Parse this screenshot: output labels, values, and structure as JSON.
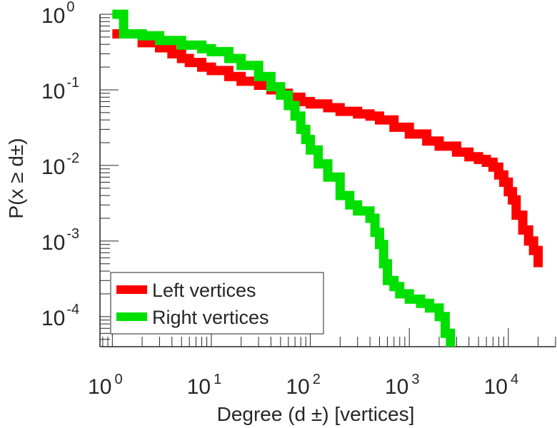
{
  "chart_data": {
    "type": "line",
    "title": "",
    "xlabel": "Degree (d ±) [vertices]",
    "ylabel": "P(x ≥ d±)",
    "xscale": "log",
    "yscale": "log",
    "xlim": [
      0.75,
      30000
    ],
    "ylim": [
      4e-05,
      1.0
    ],
    "grid": false,
    "legend_position": "bottom-left",
    "xticks": [
      {
        "value": 1,
        "base": "10",
        "exp": "0"
      },
      {
        "value": 10,
        "base": "10",
        "exp": "1"
      },
      {
        "value": 100,
        "base": "10",
        "exp": "2"
      },
      {
        "value": 1000,
        "base": "10",
        "exp": "3"
      },
      {
        "value": 10000,
        "base": "10",
        "exp": "4"
      }
    ],
    "yticks": [
      {
        "value": 1,
        "base": "10",
        "exp": "0"
      },
      {
        "value": 0.1,
        "base": "10",
        "exp": "-1"
      },
      {
        "value": 0.01,
        "base": "10",
        "exp": "-2"
      },
      {
        "value": 0.001,
        "base": "10",
        "exp": "-3"
      },
      {
        "value": 0.0001,
        "base": "10",
        "exp": "-4"
      }
    ],
    "series": [
      {
        "name": "Left vertices",
        "color": "#ff0000",
        "x": [
          1,
          2,
          3,
          4,
          5,
          6,
          8,
          10,
          15,
          20,
          30,
          40,
          50,
          60,
          80,
          100,
          150,
          200,
          300,
          400,
          500,
          700,
          1000,
          1500,
          2000,
          3000,
          4000,
          5000,
          6000,
          7000,
          8000,
          9000,
          10000,
          11000,
          12000,
          14000,
          16000,
          18000,
          20000
        ],
        "y": [
          0.55,
          0.42,
          0.36,
          0.3,
          0.26,
          0.23,
          0.2,
          0.18,
          0.15,
          0.13,
          0.115,
          0.1,
          0.09,
          0.08,
          0.07,
          0.065,
          0.058,
          0.052,
          0.048,
          0.045,
          0.04,
          0.032,
          0.026,
          0.021,
          0.018,
          0.015,
          0.013,
          0.012,
          0.011,
          0.0095,
          0.0075,
          0.006,
          0.0045,
          0.0035,
          0.0022,
          0.0014,
          0.001,
          0.00075,
          0.00045
        ]
      },
      {
        "name": "Right vertices",
        "color": "#00e000",
        "x": [
          1,
          1.3,
          2,
          3,
          5,
          8,
          10,
          15,
          20,
          30,
          40,
          50,
          60,
          70,
          80,
          90,
          100,
          120,
          150,
          200,
          250,
          300,
          400,
          450,
          500,
          550,
          600,
          700,
          800,
          1000,
          1300,
          1600,
          2000,
          2300,
          2600
        ],
        "y": [
          1.0,
          0.55,
          0.52,
          0.45,
          0.39,
          0.35,
          0.32,
          0.26,
          0.21,
          0.15,
          0.11,
          0.085,
          0.062,
          0.045,
          0.03,
          0.022,
          0.016,
          0.0105,
          0.007,
          0.004,
          0.003,
          0.0025,
          0.002,
          0.0013,
          0.0009,
          0.0005,
          0.0003,
          0.00025,
          0.0002,
          0.00017,
          0.00015,
          0.00013,
          0.0001,
          6e-05,
          4e-05
        ]
      }
    ]
  }
}
